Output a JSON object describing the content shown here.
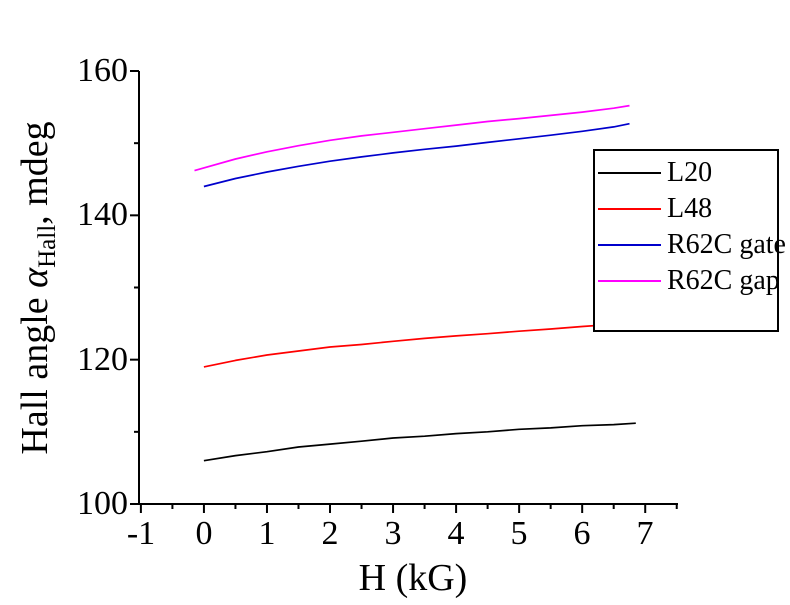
{
  "chart_data": {
    "type": "line",
    "title": "",
    "xlabel": "H (kG)",
    "ylabel": {
      "prefix": "Hall angle ",
      "alpha": "α",
      "sub": "Hall",
      "suffix": ", mdeg"
    },
    "xlim": [
      -1.03,
      7.52
    ],
    "ylim": [
      100,
      160
    ],
    "x_major_ticks": [
      -1,
      0,
      1,
      2,
      3,
      4,
      5,
      6,
      7
    ],
    "x_minor_ticks": [
      -0.5,
      0.5,
      1.5,
      2.5,
      3.5,
      4.5,
      5.5,
      6.5,
      7.5
    ],
    "y_major_ticks": [
      100,
      120,
      140,
      160
    ],
    "y_minor_ticks": [
      110,
      130,
      150
    ],
    "grid": false,
    "axis_color": "#000000",
    "legend_position": "inside-right",
    "series": [
      {
        "name": "L20",
        "color": "#000000",
        "x": [
          0,
          0.5,
          1,
          1.5,
          2,
          2.5,
          3,
          3.5,
          4,
          4.5,
          5,
          5.5,
          6,
          6.5,
          6.85
        ],
        "y": [
          106.0,
          106.7,
          107.25,
          107.9,
          108.3,
          108.7,
          109.15,
          109.4,
          109.75,
          110.0,
          110.35,
          110.55,
          110.85,
          111.0,
          111.2
        ]
      },
      {
        "name": "L48",
        "color": "#FF0000",
        "x": [
          0,
          0.5,
          1,
          1.5,
          2,
          2.5,
          3,
          3.5,
          4,
          4.5,
          5,
          5.5,
          6,
          6.5,
          6.8
        ],
        "y": [
          119.0,
          119.9,
          120.65,
          121.2,
          121.75,
          122.1,
          122.55,
          122.95,
          123.3,
          123.6,
          123.95,
          124.25,
          124.6,
          124.9,
          125.1
        ]
      },
      {
        "name": "R62C gate",
        "color": "#0000CC",
        "x": [
          0,
          0.5,
          1,
          1.5,
          2,
          2.5,
          3,
          3.5,
          4,
          4.5,
          5,
          5.5,
          6,
          6.5,
          6.75
        ],
        "y": [
          144.0,
          145.1,
          146.0,
          146.8,
          147.5,
          148.1,
          148.65,
          149.15,
          149.6,
          150.1,
          150.6,
          151.1,
          151.65,
          152.25,
          152.7
        ]
      },
      {
        "name": "R62C gap",
        "color": "#FF00FF",
        "x": [
          -0.15,
          0.5,
          1,
          1.5,
          2,
          2.5,
          3,
          3.5,
          4,
          4.5,
          5,
          5.5,
          6,
          6.5,
          6.75
        ],
        "y": [
          146.2,
          147.8,
          148.8,
          149.65,
          150.4,
          151.0,
          151.5,
          152.0,
          152.5,
          153.0,
          153.4,
          153.85,
          154.3,
          154.85,
          155.2
        ]
      }
    ]
  }
}
